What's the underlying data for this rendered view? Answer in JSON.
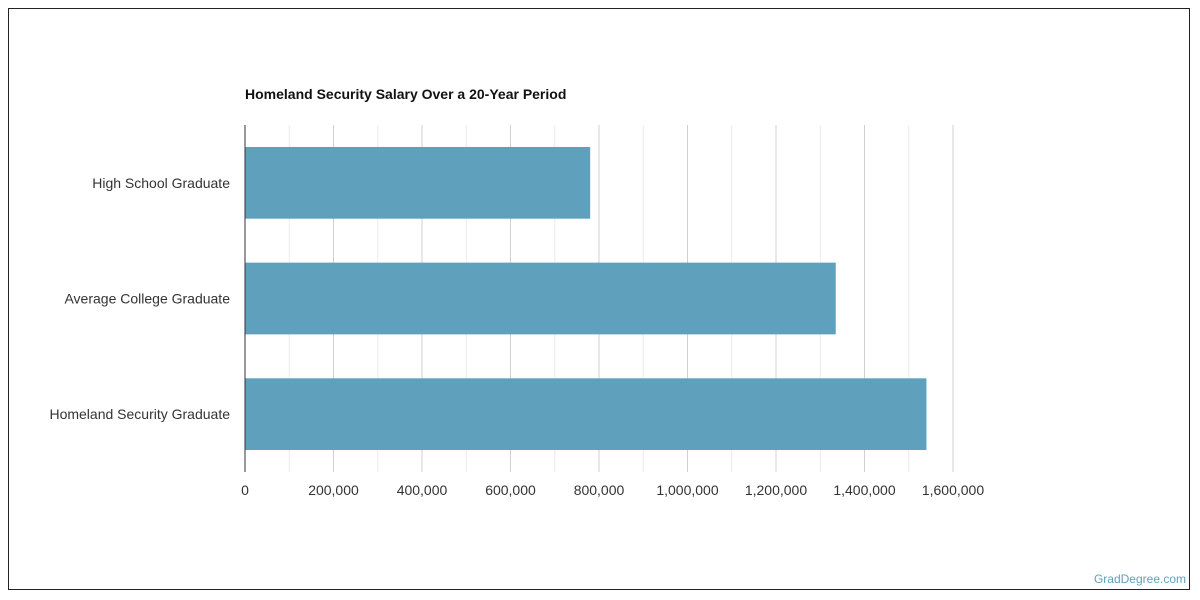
{
  "chart_data": {
    "type": "bar",
    "orientation": "horizontal",
    "title": "Homeland Security Salary Over a 20-Year Period",
    "categories": [
      "High School Graduate",
      "Average College Graduate",
      "Homeland Security Graduate"
    ],
    "values": [
      780000,
      1335000,
      1540000
    ],
    "xlim": [
      0,
      1600000
    ],
    "xticks": [
      "0",
      "200,000",
      "400,000",
      "600,000",
      "800,000",
      "1,000,000",
      "1,200,000",
      "1,400,000",
      "1,600,000"
    ],
    "xlabel": "",
    "ylabel": "",
    "grid": true,
    "bar_color": "#5fa1bd"
  },
  "credit": "GradDegree.com"
}
